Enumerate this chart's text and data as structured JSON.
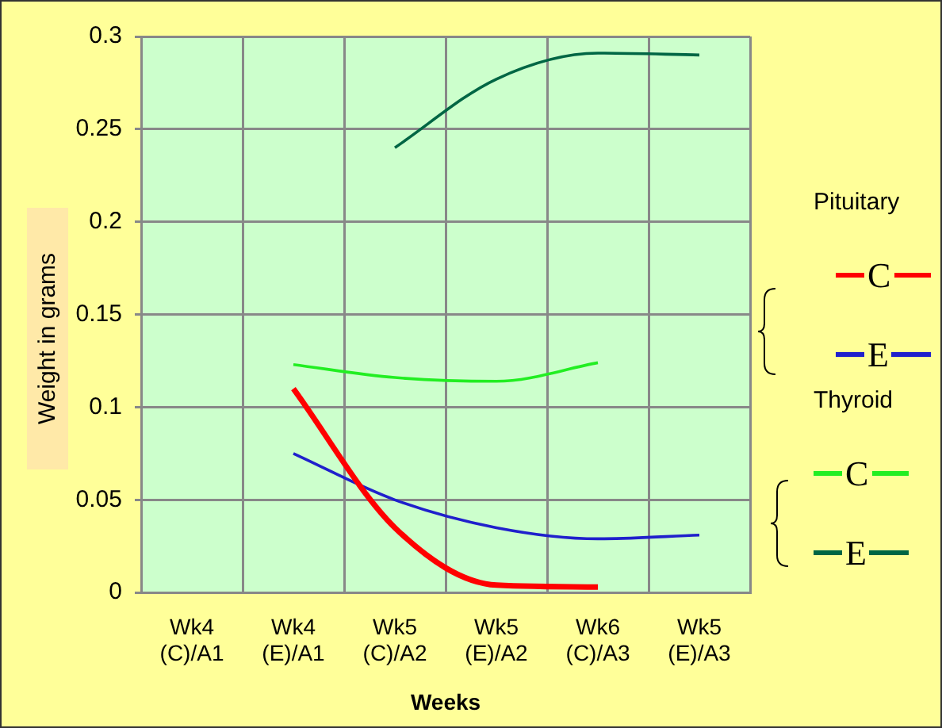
{
  "chart_data": {
    "type": "line",
    "xlabel": "Weeks",
    "ylabel": "Weight in grams",
    "annotations": [
      "Pituitary",
      "Thyroid"
    ],
    "categories": [
      "Wk4 (C)/A1",
      "Wk4 (E)/A1",
      "Wk5 (C)/A2",
      "Wk5 (E)/A2",
      "Wk6 (C)/A3",
      "Wk5 (E)/A3"
    ],
    "ylim": [
      0,
      0.3
    ],
    "yticks": [
      0,
      0.05,
      0.1,
      0.15,
      0.2,
      0.25,
      0.3
    ],
    "grid": true,
    "legend": "right",
    "marker": "none",
    "line_style": "solid",
    "series": [
      {
        "name": "C",
        "color": "#ff0000",
        "values": [
          null,
          0.11,
          0.035,
          0.004,
          0.003,
          null
        ]
      },
      {
        "name": "E",
        "color": "#2020cc",
        "values": [
          null,
          0.075,
          0.05,
          0.035,
          0.029,
          0.031
        ]
      },
      {
        "name": "C",
        "color": "#22ee22",
        "values": [
          null,
          0.123,
          0.116,
          0.114,
          0.124,
          null
        ]
      },
      {
        "name": "E",
        "color": "#006644",
        "values": [
          null,
          null,
          0.24,
          0.277,
          0.291,
          0.29
        ]
      }
    ]
  }
}
